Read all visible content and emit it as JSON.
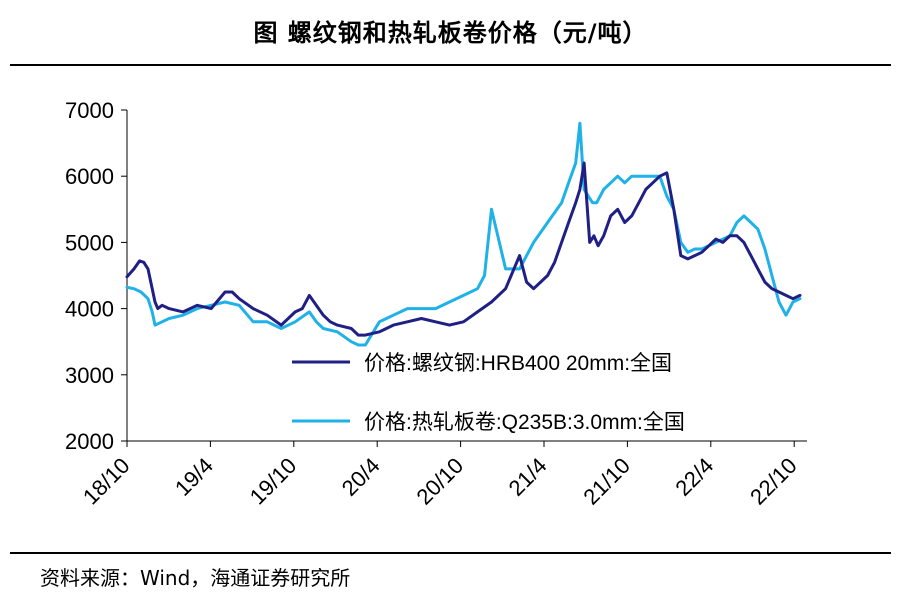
{
  "header": {
    "title": "图  螺纹钢和热轧板卷价格（元/吨）"
  },
  "footer": {
    "source": "资料来源：Wind，海通证券研究所"
  },
  "colors": {
    "rebar": "#1f1f86",
    "hot_rolled": "#1fb1e8",
    "axis": "#000000"
  },
  "chart_data": {
    "type": "line",
    "title": "螺纹钢和热轧板卷价格（元/吨）",
    "xlabel": "",
    "ylabel": "",
    "ylim": [
      2000,
      7000
    ],
    "yticks": [
      2000,
      3000,
      4000,
      5000,
      6000,
      7000
    ],
    "xticks": [
      "18/10",
      "19/4",
      "19/10",
      "20/4",
      "20/10",
      "21/4",
      "21/10",
      "22/4",
      "22/10"
    ],
    "xlim": [
      0,
      48.5
    ],
    "legend_position": "lower-right",
    "series": [
      {
        "name": "价格:螺纹钢:HRB400 20mm:全国",
        "color": "#1f1f86",
        "x": [
          0,
          0.5,
          0.9,
          1.2,
          1.5,
          1.8,
          2.0,
          2.2,
          2.5,
          3,
          4,
          5,
          6,
          7,
          7.5,
          8,
          9,
          10,
          11,
          12,
          12.5,
          13,
          14,
          14.5,
          15,
          16,
          16.5,
          17,
          18,
          19,
          20,
          21,
          22,
          23,
          24,
          25,
          26,
          27,
          28,
          28.5,
          29,
          29.5,
          30,
          30.5,
          31,
          31.5,
          32,
          32.3,
          32.6,
          33,
          33.3,
          33.6,
          34,
          34.5,
          35,
          35.5,
          36,
          36.5,
          37,
          37.5,
          38,
          38.5,
          39,
          39.5,
          40,
          40.5,
          41,
          41.5,
          42,
          42.5,
          43,
          43.5,
          44,
          44.5,
          45,
          45.5,
          46,
          46.5,
          47,
          47.5,
          48
        ],
        "y": [
          4480,
          4600,
          4720,
          4700,
          4600,
          4300,
          4100,
          4000,
          4050,
          4000,
          3950,
          4050,
          4000,
          4250,
          4250,
          4150,
          4000,
          3900,
          3750,
          3950,
          4000,
          4200,
          3900,
          3800,
          3750,
          3700,
          3600,
          3600,
          3650,
          3750,
          3800,
          3850,
          3800,
          3750,
          3800,
          3950,
          4100,
          4300,
          4800,
          4400,
          4300,
          4400,
          4500,
          4700,
          5000,
          5300,
          5600,
          5800,
          6200,
          5000,
          5100,
          4950,
          5100,
          5400,
          5500,
          5300,
          5400,
          5600,
          5800,
          5900,
          6000,
          6050,
          5500,
          4800,
          4750,
          4800,
          4850,
          4950,
          5050,
          5000,
          5100,
          5100,
          5000,
          4800,
          4600,
          4400,
          4300,
          4250,
          4200,
          4150,
          4200
        ]
      },
      {
        "name": "价格:热轧板卷:Q235B:3.0mm:全国",
        "color": "#1fb1e8",
        "x": [
          0,
          0.5,
          1,
          1.5,
          1.8,
          2.0,
          2.5,
          3,
          4,
          5,
          6,
          7,
          8,
          9,
          10,
          11,
          12,
          13,
          13.5,
          14,
          15,
          16,
          16.5,
          17,
          18,
          19,
          20,
          21,
          22,
          23,
          24,
          25,
          25.5,
          26,
          27,
          28,
          28.5,
          29,
          30,
          31,
          31.5,
          32,
          32.3,
          32.6,
          32.9,
          33.2,
          33.5,
          34,
          34.5,
          35,
          35.5,
          36,
          37,
          38,
          38.5,
          39,
          39.5,
          40,
          40.5,
          41,
          42,
          43,
          43.5,
          44,
          44.5,
          45,
          45.5,
          46,
          46.5,
          47,
          47.5,
          48
        ],
        "y": [
          4320,
          4300,
          4250,
          4150,
          3950,
          3750,
          3800,
          3850,
          3900,
          4000,
          4050,
          4100,
          4050,
          3800,
          3800,
          3700,
          3800,
          3950,
          3800,
          3700,
          3650,
          3500,
          3450,
          3450,
          3800,
          3900,
          4000,
          4000,
          4000,
          4100,
          4200,
          4300,
          4500,
          5500,
          4600,
          4600,
          4800,
          5000,
          5300,
          5600,
          5900,
          6200,
          6800,
          5800,
          5700,
          5600,
          5600,
          5800,
          5900,
          6000,
          5900,
          6000,
          6000,
          6000,
          5700,
          5500,
          5000,
          4850,
          4900,
          4900,
          5000,
          5100,
          5300,
          5400,
          5300,
          5200,
          4900,
          4500,
          4100,
          3900,
          4100,
          4150
        ]
      }
    ]
  }
}
